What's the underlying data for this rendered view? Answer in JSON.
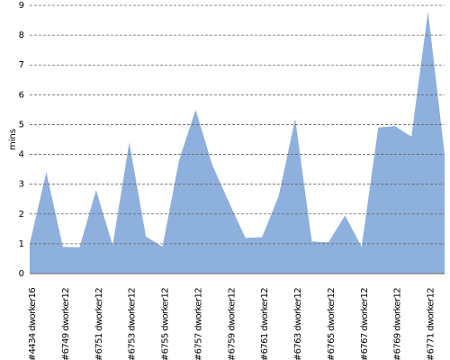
{
  "chart_data": {
    "type": "area",
    "y_label": "mins",
    "categories": [
      "#4434 dworker16",
      null,
      "#6749 dworker12",
      null,
      "#6751 dworker12",
      null,
      "#6753 dworker12",
      null,
      "#6755 dworker12",
      null,
      "#6757 dworker12",
      null,
      "#6759 dworker12",
      null,
      "#6761 dworker12",
      null,
      "#6763 dworker12",
      null,
      "#6765 dworker12",
      null,
      "#6767 dworker12",
      null,
      "#6769 dworker12",
      null,
      "#6771 dworker12",
      null
    ],
    "values": [
      1.0,
      3.4,
      0.9,
      0.88,
      2.8,
      0.95,
      4.4,
      1.25,
      0.9,
      3.8,
      5.5,
      3.65,
      2.4,
      1.2,
      1.22,
      2.6,
      5.2,
      1.08,
      1.05,
      1.95,
      0.9,
      4.9,
      4.95,
      4.6,
      8.8,
      4.0
    ],
    "color": "#8eb0dc",
    "ylim": [
      0,
      9
    ],
    "yticks": [
      0,
      1,
      2,
      3,
      4,
      5,
      6,
      7,
      8,
      9
    ],
    "grid": true
  }
}
